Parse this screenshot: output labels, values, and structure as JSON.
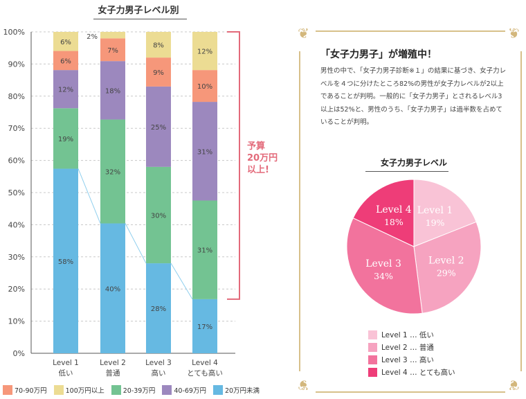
{
  "chart_data": [
    {
      "type": "bar",
      "stacked": true,
      "title": "女子力男子レベル別",
      "categories": [
        "Level 1",
        "Level 2",
        "Level 3",
        "Level 4"
      ],
      "category_sublabels": [
        "低い",
        "普通",
        "高い",
        "とても高い"
      ],
      "yticks": [
        "0%",
        "10%",
        "20%",
        "30%",
        "40%",
        "50%",
        "60%",
        "70%",
        "80%",
        "90%",
        "100%"
      ],
      "ylim": [
        0,
        100
      ],
      "grid": true,
      "series": [
        {
          "name": "20万円未満",
          "color": "#66b9e2",
          "values": [
            58,
            40,
            28,
            17
          ]
        },
        {
          "name": "20-39万円",
          "color": "#73c392",
          "values": [
            19,
            32,
            30,
            31
          ]
        },
        {
          "name": "40-69万円",
          "color": "#9c88be",
          "values": [
            12,
            18,
            25,
            31
          ]
        },
        {
          "name": "70-90万円",
          "color": "#f6977a",
          "values": [
            6,
            7,
            9,
            10
          ]
        },
        {
          "name": "100万円以上",
          "color": "#ecdc93",
          "values": [
            6,
            2,
            8,
            12
          ]
        }
      ],
      "legend_order": [
        "70-90万円",
        "100万円以上",
        "20-39万円",
        "40-69万円",
        "20万円未満"
      ],
      "legend_position": "bottom",
      "annotation": {
        "lines": [
          "予算",
          "20万円",
          "以上!"
        ],
        "color": "#e36a7a"
      }
    },
    {
      "type": "pie",
      "title": "女子力男子レベル",
      "slices": [
        {
          "label": "Level 1",
          "num": "1",
          "value": 19,
          "color": "#f9c3d6",
          "legend": "Level 1 … 低い"
        },
        {
          "label": "Level 2",
          "num": "2",
          "value": 29,
          "color": "#f6a3c0",
          "legend": "Level 2 … 普通"
        },
        {
          "label": "Level 3",
          "num": "3",
          "value": 34,
          "color": "#f2739d",
          "legend": "Level 3 … 高い"
        },
        {
          "label": "Level 4",
          "num": "4",
          "value": 18,
          "color": "#ee3d78",
          "legend": "Level 4 … とても高い"
        }
      ],
      "legend_position": "bottom"
    }
  ],
  "panel": {
    "headline": "「女子力男子」が増殖中！",
    "body": "男性の中で、「女子力男子診断※１」の結果に基づき、女子力レベルを４つに分けたところ82%の男性が女子力レベルが2以上であることが判明。一般的に「女子力男子」とされるレベル3以上は52%と、男性のうち、「女子力男子」は過半数を占めていることが判明。",
    "frame_color": "#d7c08a"
  }
}
